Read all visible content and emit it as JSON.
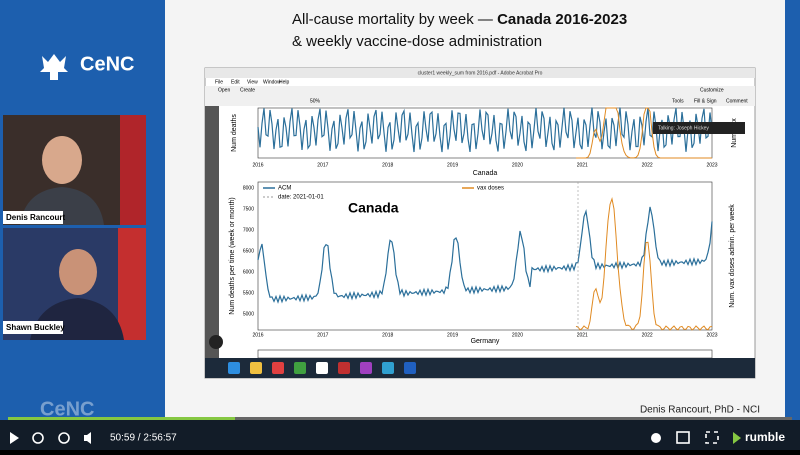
{
  "sidebar": {
    "logo": "CeNC",
    "speakers": [
      "Denis Rancourt",
      "Shawn Buckley"
    ]
  },
  "slide": {
    "title_line1": "All-cause mortality by week —",
    "title_bold": "Canada 2016-2023",
    "title_line2": "& weekly vaccine-dose administration",
    "footer": "Denis Rancourt, PhD  -  NCI"
  },
  "acrobat": {
    "window_title": "cluster1 weekly_sum from 2016.pdf - Adobe Acrobat Pro",
    "menu": [
      "File",
      "Edit",
      "View",
      "Window",
      "Help"
    ],
    "toolbar": [
      "Open",
      "Create"
    ],
    "zoom": "50%",
    "panels": [
      "Tools",
      "Fill & Sign",
      "Comment"
    ],
    "customize": "Customize",
    "talking": "Talking: Joseph Hickey"
  },
  "figure": {
    "top_label": "Canada",
    "panel_title": "Canada",
    "legend": [
      "ACM",
      "date: 2021-01-01",
      "vax doses"
    ],
    "y_label": "Num deaths per time (week or month)",
    "y2_label": "Num. vax doses admin. per week",
    "top_y_label": "Num deaths",
    "top_y2_label": "Num. vax",
    "yticks": [
      "8000",
      "7500",
      "7000",
      "6500",
      "6000",
      "5500",
      "5000"
    ],
    "xticks": [
      "2016",
      "2017",
      "2018",
      "2019",
      "2020",
      "2021",
      "2022",
      "2023"
    ],
    "next_label": "Germany"
  },
  "player": {
    "time": "50:59 / 2:56:57",
    "brand": "rumble"
  }
}
